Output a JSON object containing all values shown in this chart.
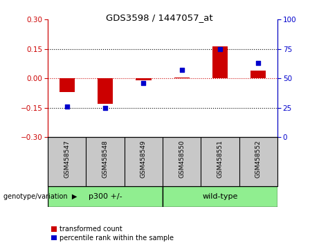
{
  "title": "GDS3598 / 1447057_at",
  "samples": [
    "GSM458547",
    "GSM458548",
    "GSM458549",
    "GSM458550",
    "GSM458551",
    "GSM458552"
  ],
  "transformed_count": [
    -0.07,
    -0.13,
    -0.01,
    0.005,
    0.165,
    0.04
  ],
  "percentile_rank": [
    26,
    25,
    46,
    57,
    75,
    63
  ],
  "group_defs": [
    {
      "label": "p300 +/-",
      "start": 0,
      "end": 2,
      "color": "#90EE90"
    },
    {
      "label": "wild-type",
      "start": 3,
      "end": 5,
      "color": "#90EE90"
    }
  ],
  "ylim_left": [
    -0.3,
    0.3
  ],
  "ylim_right": [
    0,
    100
  ],
  "yticks_left": [
    -0.3,
    -0.15,
    0,
    0.15,
    0.3
  ],
  "yticks_right": [
    0,
    25,
    50,
    75,
    100
  ],
  "bar_color": "#CC0000",
  "dot_color": "#0000CC",
  "zero_line_color": "#CC0000",
  "dotted_line_color": "#000000",
  "bg_color_samples": "#C8C8C8",
  "legend_bar_label": "transformed count",
  "legend_dot_label": "percentile rank within the sample",
  "genotype_label": "genotype/variation",
  "arrow_char": "▶"
}
